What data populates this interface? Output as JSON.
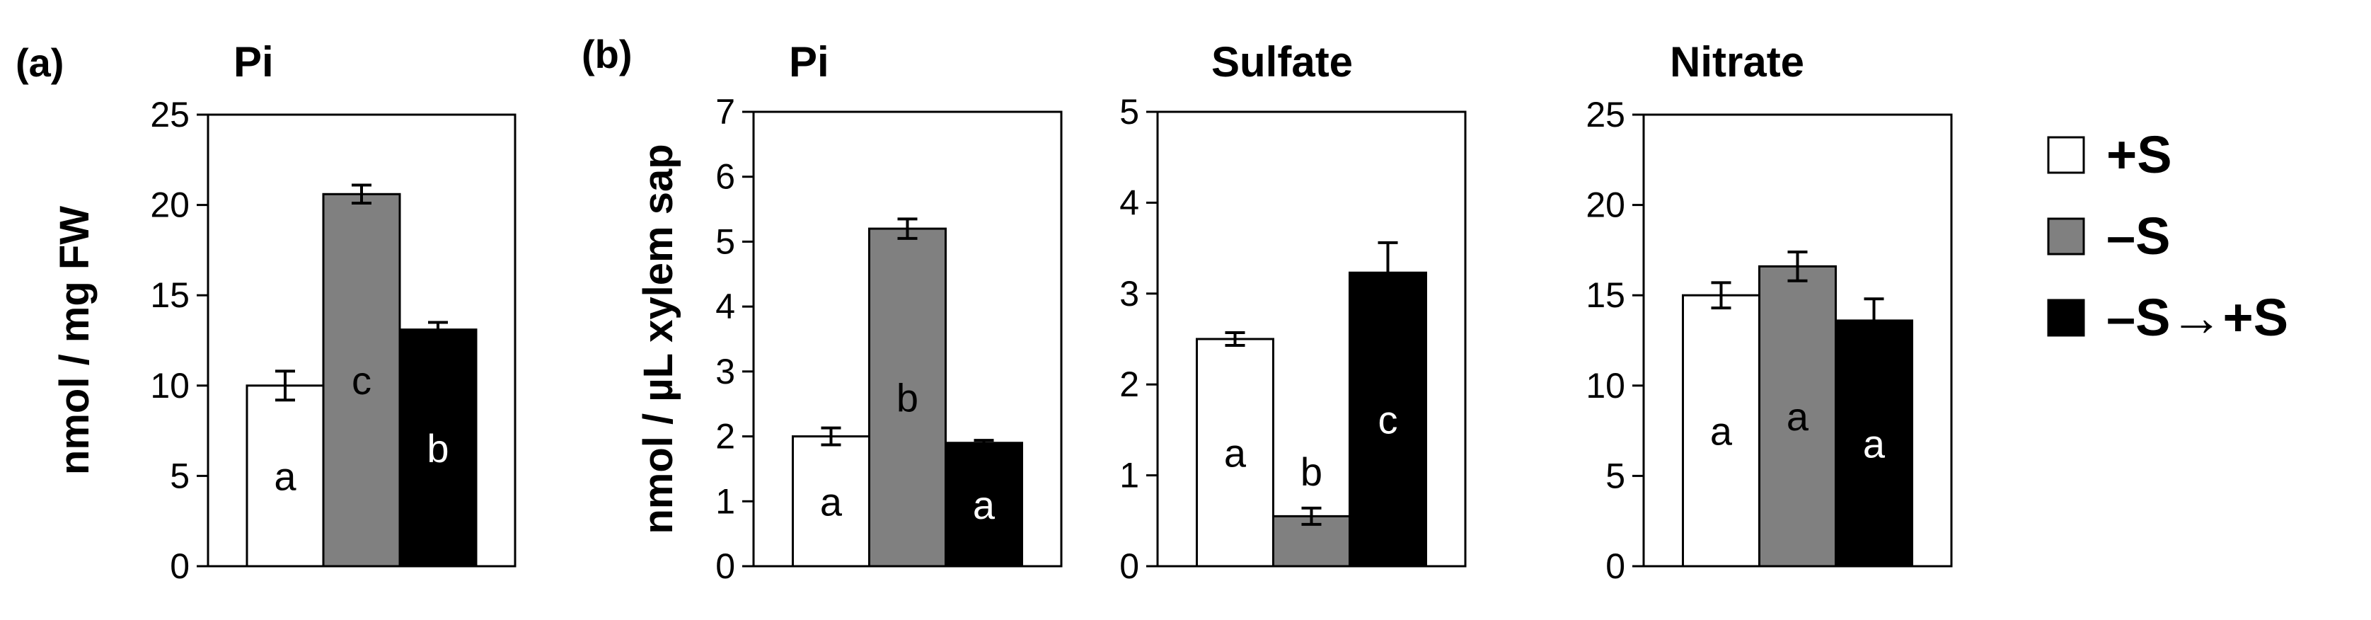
{
  "panels": {
    "a": "(a)",
    "b": "(b)"
  },
  "legend": {
    "items": [
      {
        "label": "+S",
        "color": "#ffffff"
      },
      {
        "label": "–S",
        "color": "#808080"
      },
      {
        "label": "–S→+S",
        "color": "#000000"
      }
    ]
  },
  "chart_data": [
    {
      "type": "bar",
      "panel": "a",
      "title": "Pi",
      "ylabel": "nmol / mg FW",
      "ylim": [
        0,
        25
      ],
      "yticks": [
        "0",
        "5",
        "10",
        "15",
        "20",
        "25"
      ],
      "categories": [
        "+S",
        "–S",
        "–S→+S"
      ],
      "values": [
        10.0,
        20.6,
        13.1
      ],
      "errors": [
        0.8,
        0.5,
        0.4
      ],
      "letters": [
        "a",
        "c",
        "b"
      ]
    },
    {
      "type": "bar",
      "panel": "b",
      "title": "Pi",
      "ylabel": "nmol / µL xylem sap",
      "ylim": [
        0,
        7
      ],
      "yticks": [
        "0",
        "1",
        "2",
        "3",
        "4",
        "5",
        "6",
        "7"
      ],
      "categories": [
        "+S",
        "–S",
        "–S→+S"
      ],
      "values": [
        2.0,
        5.2,
        1.9
      ],
      "errors": [
        0.13,
        0.15,
        0.04
      ],
      "letters": [
        "a",
        "b",
        "a"
      ]
    },
    {
      "type": "bar",
      "panel": "b",
      "title": "Sulfate",
      "ylabel": "",
      "ylim": [
        0,
        5
      ],
      "yticks": [
        "0",
        "1",
        "2",
        "3",
        "4",
        "5"
      ],
      "categories": [
        "+S",
        "–S",
        "–S→+S"
      ],
      "values": [
        2.5,
        0.55,
        3.23
      ],
      "errors": [
        0.07,
        0.09,
        0.33
      ],
      "letters": [
        "a",
        "b",
        "c"
      ]
    },
    {
      "type": "bar",
      "panel": "b",
      "title": "Nitrate",
      "ylabel": "",
      "ylim": [
        0,
        25
      ],
      "yticks": [
        "0",
        "5",
        "10",
        "15",
        "20",
        "25"
      ],
      "categories": [
        "+S",
        "–S",
        "–S→+S"
      ],
      "values": [
        15.0,
        16.6,
        13.6
      ],
      "errors": [
        0.7,
        0.8,
        1.2
      ],
      "letters": [
        "a",
        "a",
        "a"
      ]
    }
  ]
}
